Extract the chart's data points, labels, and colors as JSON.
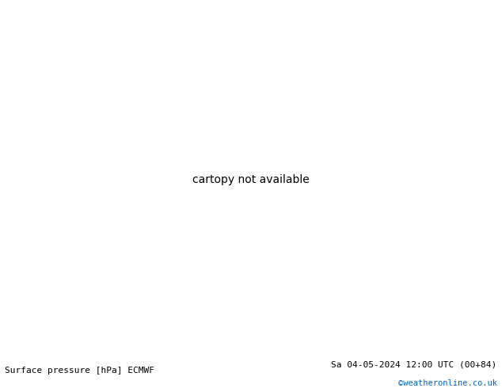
{
  "title_left": "Surface pressure [hPa] ECMWF",
  "title_right": "Sa 04-05-2024 12:00 UTC (00+84)",
  "copyright": "©weatheronline.co.uk",
  "ocean_color": "#d8e8f0",
  "land_color": "#b8dfa0",
  "land_edge_color": "#888888",
  "isobar_red_color": "#cc0000",
  "isobar_black_color": "#000000",
  "isobar_blue_color": "#0055cc",
  "footer_bg": "#ffffff",
  "footer_text_color": "#000000",
  "copyright_color": "#0066cc",
  "lon_min": 70,
  "lon_max": 185,
  "lat_min": -62,
  "lat_max": 8
}
